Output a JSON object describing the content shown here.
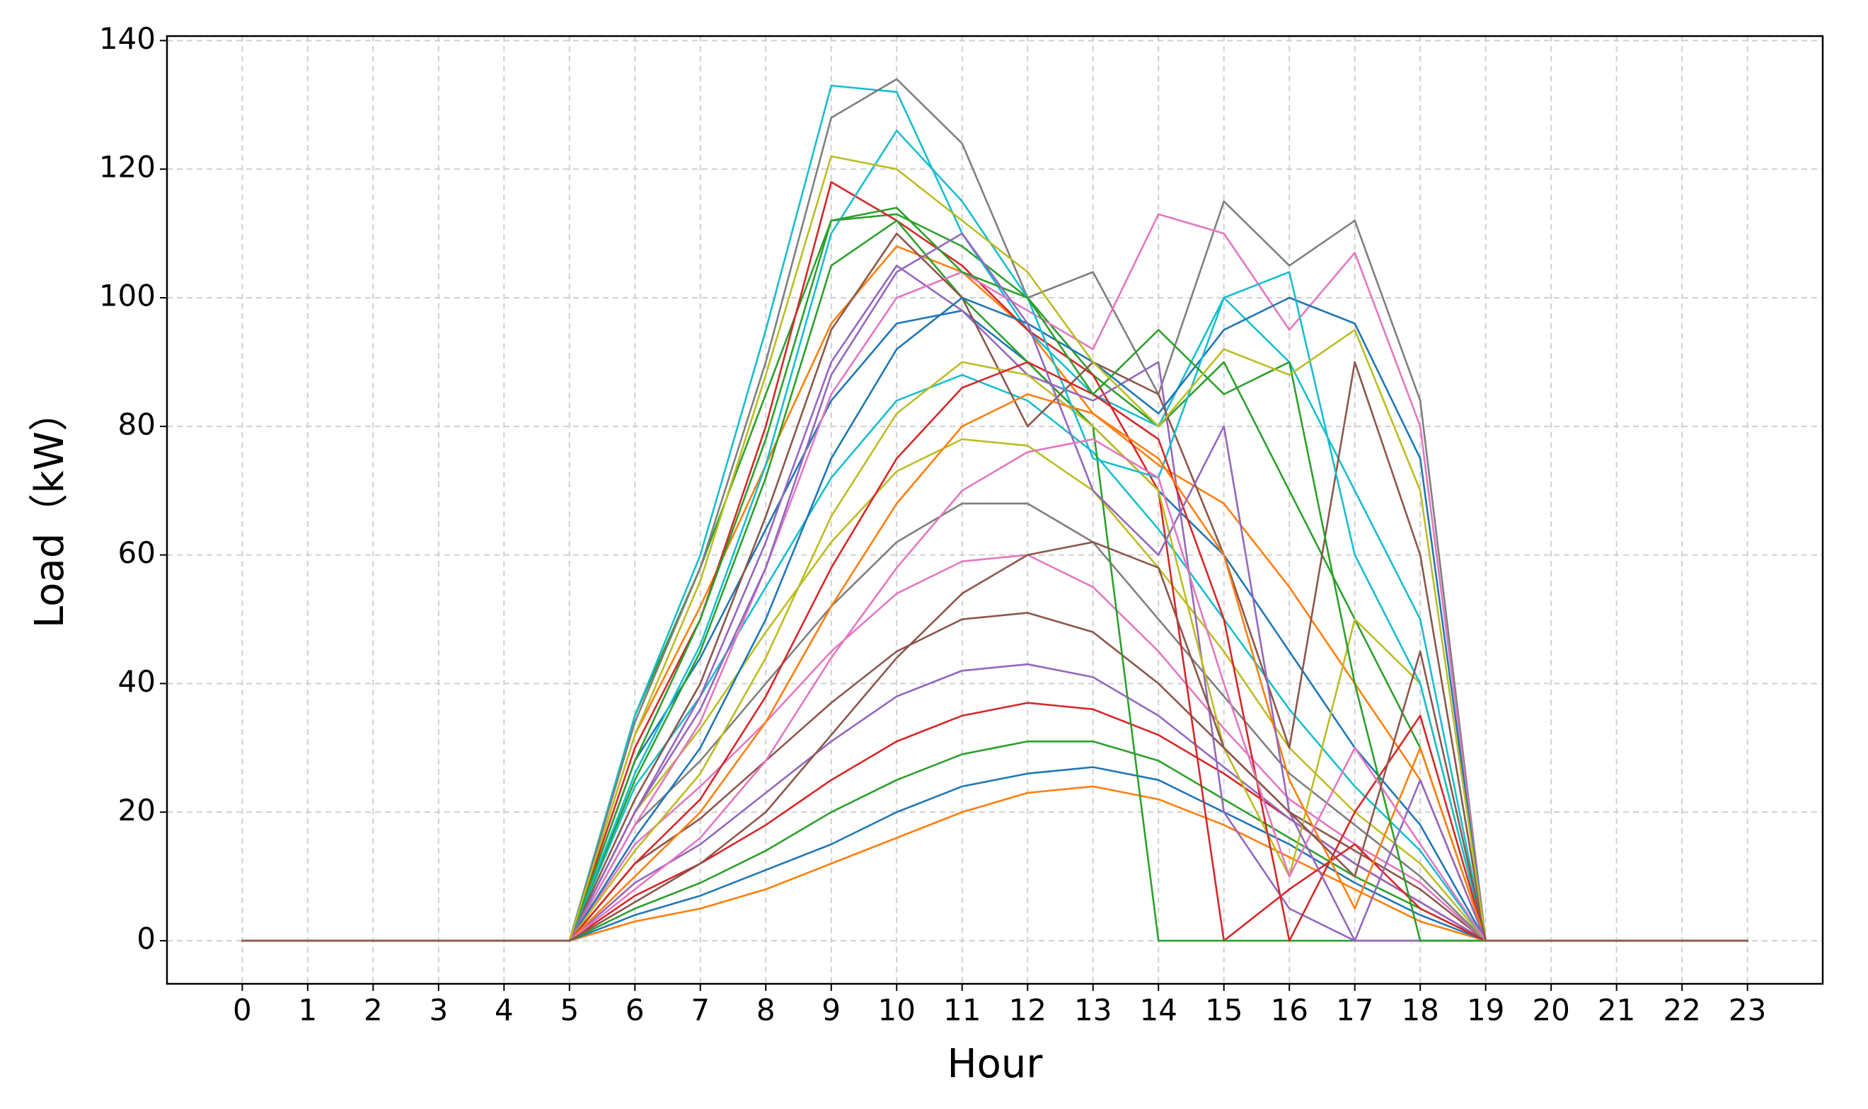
{
  "chart_data": {
    "type": "line",
    "xlabel": "Hour",
    "ylabel": "Load（kW）",
    "x": [
      0,
      1,
      2,
      3,
      4,
      5,
      6,
      7,
      8,
      9,
      10,
      11,
      12,
      13,
      14,
      15,
      16,
      17,
      18,
      19,
      20,
      21,
      22,
      23
    ],
    "xlim": [
      -1.15,
      24.15
    ],
    "xticks": [
      0,
      1,
      2,
      3,
      4,
      5,
      6,
      7,
      8,
      9,
      10,
      11,
      12,
      13,
      14,
      15,
      16,
      17,
      18,
      19,
      20,
      21,
      22,
      23
    ],
    "ylim": [
      -6.7,
      140.7
    ],
    "yticks": [
      0,
      20,
      40,
      60,
      80,
      100,
      120,
      140
    ],
    "grid": true,
    "series": [
      {
        "color": "#ff7f0e",
        "values": [
          0,
          0,
          0,
          0,
          0,
          0,
          3,
          5,
          8,
          12,
          16,
          20,
          23,
          24,
          22,
          18,
          13,
          8,
          3,
          0,
          0,
          0,
          0,
          0
        ]
      },
      {
        "color": "#1f77b4",
        "values": [
          0,
          0,
          0,
          0,
          0,
          0,
          4,
          7,
          11,
          15,
          20,
          24,
          26,
          27,
          25,
          20,
          15,
          9,
          4,
          0,
          0,
          0,
          0,
          0
        ]
      },
      {
        "color": "#2ca02c",
        "values": [
          0,
          0,
          0,
          0,
          0,
          0,
          5,
          9,
          14,
          20,
          25,
          29,
          31,
          31,
          28,
          22,
          16,
          10,
          5,
          0,
          0,
          0,
          0,
          0
        ]
      },
      {
        "color": "#d62728",
        "values": [
          0,
          0,
          0,
          0,
          0,
          0,
          7,
          12,
          18,
          25,
          31,
          35,
          37,
          36,
          32,
          26,
          19,
          12,
          6,
          0,
          0,
          0,
          0,
          0
        ]
      },
      {
        "color": "#9467bd",
        "values": [
          0,
          0,
          0,
          0,
          0,
          0,
          9,
          15,
          23,
          31,
          38,
          42,
          43,
          41,
          35,
          27,
          19,
          12,
          6,
          0,
          0,
          0,
          0,
          0
        ]
      },
      {
        "color": "#8c564b",
        "values": [
          0,
          0,
          0,
          0,
          0,
          0,
          12,
          19,
          28,
          37,
          45,
          50,
          51,
          48,
          40,
          30,
          20,
          14,
          8,
          0,
          0,
          0,
          0,
          0
        ]
      },
      {
        "color": "#e377c2",
        "values": [
          0,
          0,
          0,
          0,
          0,
          0,
          15,
          24,
          34,
          45,
          54,
          59,
          60,
          55,
          45,
          33,
          22,
          15,
          9,
          0,
          0,
          0,
          0,
          0
        ]
      },
      {
        "color": "#7f7f7f",
        "values": [
          0,
          0,
          0,
          0,
          0,
          0,
          18,
          28,
          40,
          52,
          62,
          68,
          68,
          62,
          50,
          38,
          26,
          18,
          10,
          0,
          0,
          0,
          0,
          0
        ]
      },
      {
        "color": "#bcbd22",
        "values": [
          0,
          0,
          0,
          0,
          0,
          0,
          20,
          33,
          48,
          62,
          73,
          78,
          77,
          70,
          58,
          45,
          30,
          20,
          12,
          0,
          0,
          0,
          0,
          0
        ]
      },
      {
        "color": "#17becf",
        "values": [
          0,
          0,
          0,
          0,
          0,
          0,
          24,
          38,
          55,
          72,
          84,
          88,
          84,
          76,
          64,
          50,
          36,
          24,
          14,
          0,
          0,
          0,
          0,
          0
        ]
      },
      {
        "color": "#1f77b4",
        "values": [
          0,
          0,
          0,
          0,
          0,
          0,
          28,
          44,
          64,
          84,
          96,
          98,
          90,
          80,
          70,
          60,
          45,
          30,
          18,
          0,
          0,
          0,
          0,
          0
        ]
      },
      {
        "color": "#ff7f0e",
        "values": [
          0,
          0,
          0,
          0,
          0,
          0,
          32,
          52,
          74,
          96,
          108,
          104,
          95,
          82,
          74,
          68,
          55,
          40,
          25,
          0,
          0,
          0,
          0,
          0
        ]
      },
      {
        "color": "#2ca02c",
        "values": [
          0,
          0,
          0,
          0,
          0,
          0,
          35,
          58,
          85,
          112,
          113,
          108,
          100,
          88,
          80,
          90,
          70,
          50,
          30,
          0,
          0,
          0,
          0,
          0
        ]
      },
      {
        "color": "#17becf",
        "values": [
          0,
          0,
          0,
          0,
          0,
          0,
          35,
          60,
          95,
          133,
          132,
          110,
          95,
          85,
          80,
          100,
          90,
          70,
          50,
          0,
          0,
          0,
          0,
          0
        ]
      },
      {
        "color": "#7f7f7f",
        "values": [
          0,
          0,
          0,
          0,
          0,
          0,
          34,
          58,
          90,
          128,
          134,
          124,
          100,
          104,
          85,
          115,
          105,
          112,
          84,
          0,
          0,
          0,
          0,
          0
        ]
      },
      {
        "color": "#d62728",
        "values": [
          0,
          0,
          0,
          0,
          0,
          0,
          30,
          50,
          80,
          118,
          112,
          105,
          95,
          88,
          70,
          0,
          8,
          15,
          5,
          0,
          0,
          0,
          0,
          0
        ]
      },
      {
        "color": "#2ca02c",
        "values": [
          0,
          0,
          0,
          0,
          0,
          0,
          25,
          45,
          72,
          105,
          112,
          100,
          90,
          80,
          0,
          0,
          0,
          0,
          0,
          0,
          0,
          0,
          0,
          0
        ]
      },
      {
        "color": "#9467bd",
        "values": [
          0,
          0,
          0,
          0,
          0,
          0,
          20,
          38,
          62,
          90,
          105,
          98,
          88,
          84,
          90,
          20,
          5,
          0,
          0,
          0,
          0,
          0,
          0,
          0
        ]
      },
      {
        "color": "#e377c2",
        "values": [
          0,
          0,
          0,
          0,
          0,
          0,
          18,
          34,
          58,
          85,
          100,
          104,
          98,
          92,
          113,
          110,
          95,
          107,
          80,
          0,
          0,
          0,
          0,
          0
        ]
      },
      {
        "color": "#8c564b",
        "values": [
          0,
          0,
          0,
          0,
          0,
          0,
          22,
          40,
          66,
          95,
          110,
          100,
          80,
          90,
          85,
          60,
          30,
          90,
          60,
          0,
          0,
          0,
          0,
          0
        ]
      },
      {
        "color": "#1f77b4",
        "values": [
          0,
          0,
          0,
          0,
          0,
          0,
          16,
          30,
          50,
          75,
          92,
          100,
          96,
          90,
          82,
          95,
          100,
          96,
          75,
          0,
          0,
          0,
          0,
          0
        ]
      },
      {
        "color": "#bcbd22",
        "values": [
          0,
          0,
          0,
          0,
          0,
          0,
          14,
          26,
          44,
          66,
          82,
          90,
          88,
          80,
          70,
          30,
          10,
          50,
          40,
          0,
          0,
          0,
          0,
          0
        ]
      },
      {
        "color": "#17becf",
        "values": [
          0,
          0,
          0,
          0,
          0,
          0,
          26,
          46,
          74,
          110,
          126,
          115,
          100,
          75,
          72,
          100,
          104,
          60,
          40,
          0,
          0,
          0,
          0,
          0
        ]
      },
      {
        "color": "#d62728",
        "values": [
          0,
          0,
          0,
          0,
          0,
          0,
          12,
          22,
          38,
          58,
          75,
          86,
          90,
          85,
          78,
          50,
          0,
          20,
          35,
          0,
          0,
          0,
          0,
          0
        ]
      },
      {
        "color": "#ff7f0e",
        "values": [
          0,
          0,
          0,
          0,
          0,
          0,
          10,
          20,
          34,
          52,
          68,
          80,
          85,
          82,
          75,
          60,
          25,
          5,
          30,
          0,
          0,
          0,
          0,
          0
        ]
      },
      {
        "color": "#2ca02c",
        "values": [
          0,
          0,
          0,
          0,
          0,
          0,
          28,
          50,
          78,
          112,
          114,
          104,
          100,
          85,
          95,
          85,
          90,
          40,
          0,
          0,
          0,
          0,
          0,
          0
        ]
      },
      {
        "color": "#9467bd",
        "values": [
          0,
          0,
          0,
          0,
          0,
          0,
          20,
          36,
          58,
          88,
          104,
          110,
          96,
          70,
          60,
          80,
          20,
          0,
          25,
          0,
          0,
          0,
          0,
          0
        ]
      },
      {
        "color": "#e377c2",
        "values": [
          0,
          0,
          0,
          0,
          0,
          0,
          8,
          16,
          28,
          44,
          58,
          70,
          76,
          78,
          72,
          40,
          10,
          30,
          15,
          0,
          0,
          0,
          0,
          0
        ]
      },
      {
        "color": "#bcbd22",
        "values": [
          0,
          0,
          0,
          0,
          0,
          0,
          32,
          56,
          88,
          122,
          120,
          112,
          104,
          90,
          80,
          92,
          88,
          95,
          70,
          0,
          0,
          0,
          0,
          0
        ]
      },
      {
        "color": "#8c564b",
        "values": [
          0,
          0,
          0,
          0,
          0,
          0,
          6,
          12,
          20,
          32,
          44,
          54,
          60,
          62,
          58,
          30,
          20,
          10,
          45,
          0,
          0,
          0,
          0,
          0
        ]
      }
    ]
  }
}
